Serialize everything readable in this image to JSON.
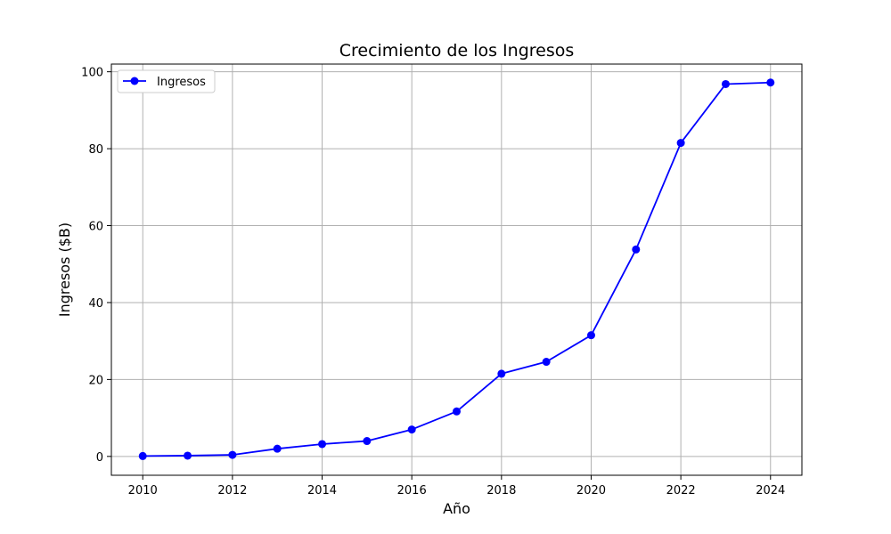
{
  "chart_data": {
    "type": "line",
    "title": "Crecimiento de los Ingresos",
    "xlabel": "Año",
    "ylabel": "Ingresos ($B)",
    "x": [
      2010,
      2011,
      2012,
      2013,
      2014,
      2015,
      2016,
      2017,
      2018,
      2019,
      2020,
      2021,
      2022,
      2023,
      2024
    ],
    "series": [
      {
        "name": "Ingresos",
        "values": [
          0.1,
          0.2,
          0.4,
          2.0,
          3.2,
          4.0,
          7.0,
          11.7,
          21.5,
          24.6,
          31.5,
          53.8,
          81.5,
          96.8,
          97.2
        ],
        "color": "#0000ff",
        "marker": "circle"
      }
    ],
    "xlim": [
      2009.3,
      2024.7
    ],
    "ylim": [
      -4.9,
      102.0
    ],
    "xticks": [
      2010,
      2012,
      2014,
      2016,
      2018,
      2020,
      2022,
      2024
    ],
    "yticks": [
      0,
      20,
      40,
      60,
      80,
      100
    ],
    "grid": true,
    "legend_position": "top-left"
  }
}
